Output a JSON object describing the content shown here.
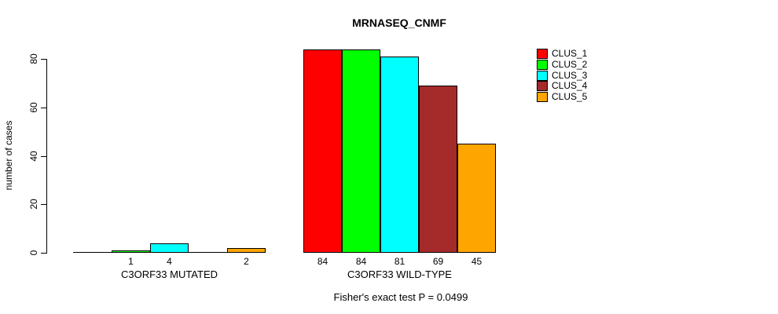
{
  "chart_data": {
    "type": "bar",
    "title": "MRNASEQ_CNMF",
    "ylabel": "number of cases",
    "ylim": [
      0,
      80
    ],
    "yticks": [
      0,
      20,
      40,
      60,
      80
    ],
    "grid": false,
    "legend_position": "right",
    "series": [
      {
        "name": "CLUS_1",
        "color": "#FF0000"
      },
      {
        "name": "CLUS_2",
        "color": "#00FF00"
      },
      {
        "name": "CLUS_3",
        "color": "#00FFFF"
      },
      {
        "name": "CLUS_4",
        "color": "#A52A2A"
      },
      {
        "name": "CLUS_5",
        "color": "#FFA500"
      }
    ],
    "categories": [
      "C3ORF33 MUTATED",
      "C3ORF33 WILD-TYPE"
    ],
    "groups": [
      {
        "label": "C3ORF33 MUTATED",
        "values": [
          0,
          1,
          4,
          0,
          2
        ]
      },
      {
        "label": "C3ORF33 WILD-TYPE",
        "values": [
          84,
          84,
          81,
          69,
          45
        ]
      }
    ],
    "bar_value_labels": {
      "shown_for_nonzero_only": true
    },
    "annotation": "Fisher's exact test P = 0.0499"
  }
}
